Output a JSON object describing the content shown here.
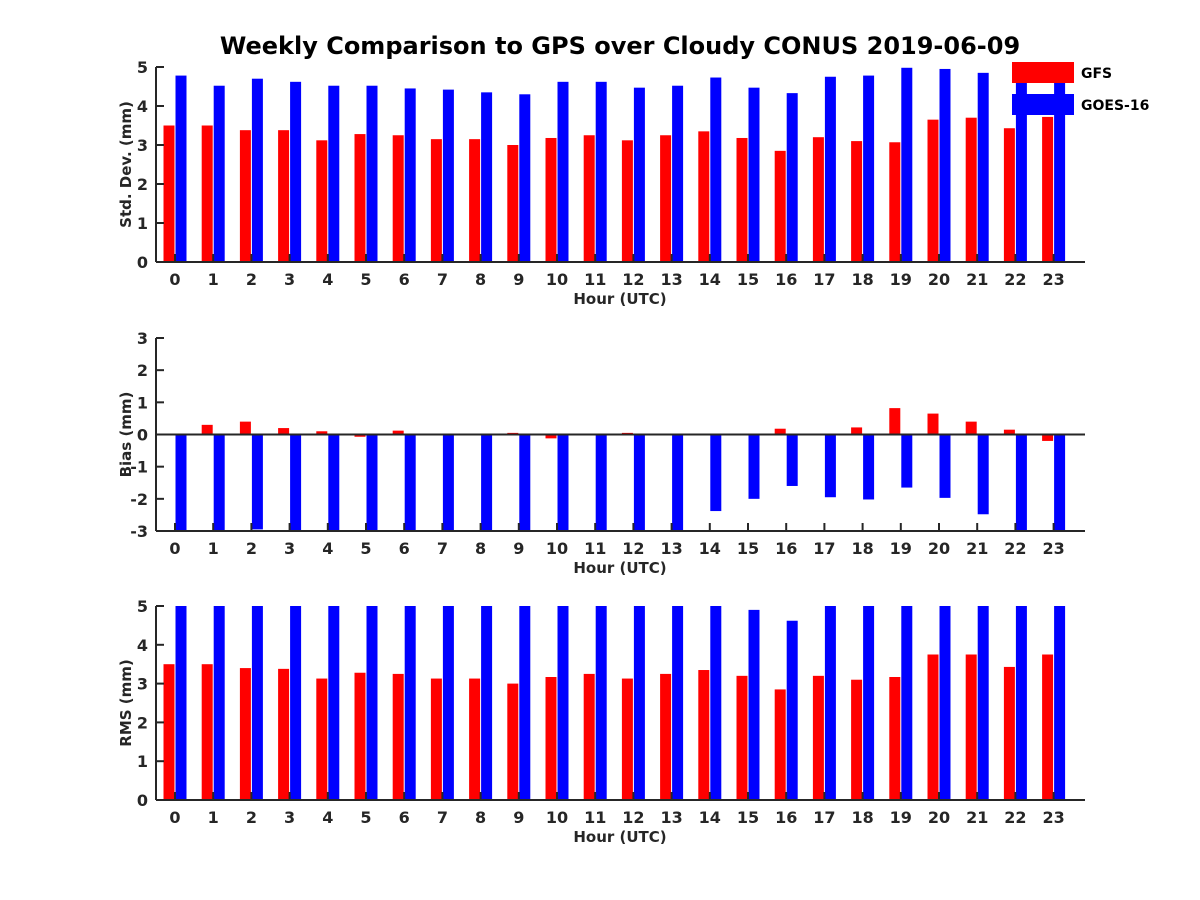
{
  "chart_data": {
    "type": "bar",
    "title": "Weekly Comparison to GPS over Cloudy CONUS 2019-06-09",
    "legend": {
      "placement": "top-right",
      "entries": [
        {
          "name": "GFS",
          "color": "#ff0000"
        },
        {
          "name": "GOES-16",
          "color": "#0000ff"
        }
      ]
    },
    "categories": [
      "0",
      "1",
      "2",
      "3",
      "4",
      "5",
      "6",
      "7",
      "8",
      "9",
      "10",
      "11",
      "12",
      "13",
      "14",
      "15",
      "16",
      "17",
      "18",
      "19",
      "20",
      "21",
      "22",
      "23"
    ],
    "panels": [
      {
        "name": "std-dev",
        "ylabel": "Std. Dev. (mm)",
        "xlabel": "Hour (UTC)",
        "ylim": [
          0,
          5
        ],
        "yticks": [
          0,
          1,
          2,
          3,
          4,
          5
        ],
        "series": [
          {
            "name": "GFS",
            "color": "#ff0000",
            "values": [
              3.5,
              3.5,
              3.38,
              3.38,
              3.12,
              3.28,
              3.25,
              3.15,
              3.15,
              3.0,
              3.18,
              3.25,
              3.12,
              3.25,
              3.35,
              3.18,
              2.85,
              3.2,
              3.1,
              3.07,
              3.65,
              3.7,
              3.43,
              3.72
            ]
          },
          {
            "name": "GOES-16",
            "color": "#0000ff",
            "values": [
              4.78,
              4.52,
              4.7,
              4.62,
              4.52,
              4.52,
              4.45,
              4.42,
              4.35,
              4.3,
              4.62,
              4.62,
              4.47,
              4.52,
              4.73,
              4.47,
              4.33,
              4.75,
              4.78,
              4.98,
              4.95,
              4.85,
              4.9,
              4.65
            ]
          }
        ]
      },
      {
        "name": "bias",
        "ylabel": "Bias (mm)",
        "xlabel": "Hour (UTC)",
        "ylim": [
          -3,
          3
        ],
        "yticks": [
          -3,
          -2,
          -1,
          0,
          1,
          2,
          3
        ],
        "series": [
          {
            "name": "GFS",
            "color": "#ff0000",
            "values": [
              0.0,
              0.3,
              0.4,
              0.2,
              0.1,
              -0.07,
              0.12,
              0.02,
              0.02,
              0.05,
              -0.12,
              -0.03,
              0.05,
              0.0,
              0.0,
              -0.02,
              0.18,
              -0.02,
              0.22,
              0.82,
              0.65,
              0.4,
              0.15,
              -0.2
            ]
          },
          {
            "name": "GOES-16",
            "color": "#0000ff",
            "values": [
              -3.0,
              -3.0,
              -2.95,
              -2.98,
              -3.0,
              -3.0,
              -3.0,
              -3.0,
              -3.0,
              -3.0,
              -3.0,
              -3.0,
              -3.0,
              -3.0,
              -2.38,
              -2.0,
              -1.6,
              -1.95,
              -2.02,
              -1.65,
              -1.97,
              -2.48,
              -3.0,
              -3.0
            ]
          }
        ]
      },
      {
        "name": "rms",
        "ylabel": "RMS (mm)",
        "xlabel": "Hour (UTC)",
        "ylim": [
          0,
          5
        ],
        "yticks": [
          0,
          1,
          2,
          3,
          4,
          5
        ],
        "series": [
          {
            "name": "GFS",
            "color": "#ff0000",
            "values": [
              3.5,
              3.5,
              3.4,
              3.38,
              3.13,
              3.28,
              3.25,
              3.13,
              3.13,
              3.0,
              3.17,
              3.25,
              3.13,
              3.25,
              3.35,
              3.2,
              2.85,
              3.2,
              3.1,
              3.17,
              3.75,
              3.75,
              3.43,
              3.75
            ]
          },
          {
            "name": "GOES-16",
            "color": "#0000ff",
            "values": [
              5,
              5,
              5,
              5,
              5,
              5,
              5,
              5,
              5,
              5,
              5,
              5,
              5,
              5,
              5,
              4.9,
              4.62,
              5,
              5,
              5,
              5,
              5,
              5,
              5
            ]
          }
        ]
      }
    ]
  }
}
